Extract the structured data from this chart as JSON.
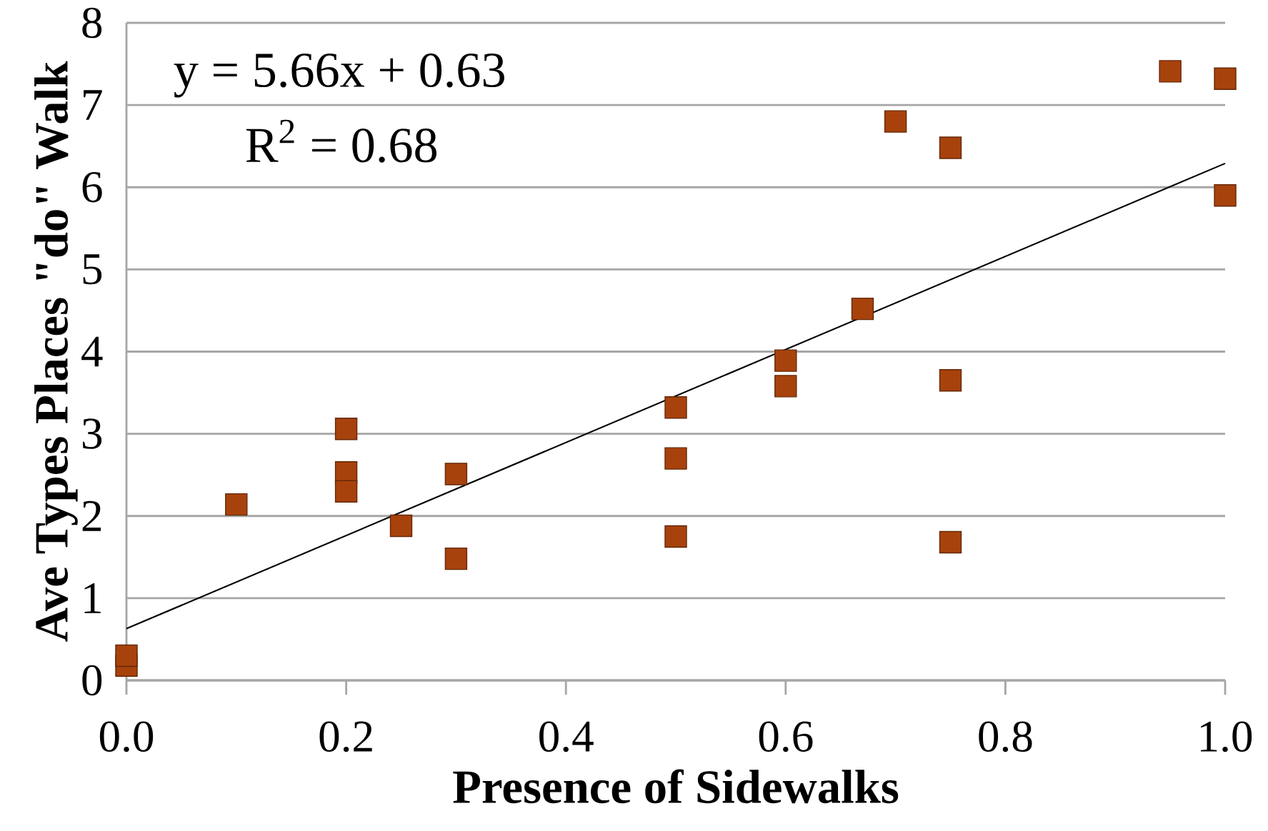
{
  "chart_data": {
    "type": "scatter",
    "xlabel": "Presence of Sidewalks",
    "ylabel": "Ave Types Places \"do\" Walk",
    "annotations": [
      "y = 5.66x + 0.63",
      "R$^{2}$ = 0.68"
    ],
    "xlim": [
      0,
      1
    ],
    "ylim": [
      0,
      8
    ],
    "xticks": [
      {
        "value": 0,
        "label": "0.0"
      },
      {
        "value": 0.2,
        "label": "0.2"
      },
      {
        "value": 0.4,
        "label": "0.4"
      },
      {
        "value": 0.6,
        "label": "0.6"
      },
      {
        "value": 0.8,
        "label": "0.8"
      },
      {
        "value": 1,
        "label": "1.0"
      }
    ],
    "yticks": [
      0,
      1,
      2,
      3,
      4,
      5,
      6,
      7,
      8
    ],
    "grid": "y",
    "series": [
      {
        "marker": "square",
        "color": "#a8420c",
        "x": [
          0,
          0,
          0.1,
          0.2,
          0.2,
          0.2,
          0.25,
          0.3,
          0.3,
          0.5,
          0.5,
          0.5,
          0.6,
          0.6,
          0.67,
          0.7,
          0.75,
          0.75,
          0.75,
          0.95,
          1,
          1
        ],
        "values": [
          0.18,
          0.3,
          2.14,
          3.06,
          2.53,
          2.3,
          1.88,
          2.51,
          1.48,
          3.32,
          2.7,
          1.75,
          3.89,
          3.58,
          4.52,
          6.8,
          6.48,
          3.65,
          1.68,
          7.41,
          7.32,
          5.9
        ]
      },
      {
        "type": "line",
        "marker": "none",
        "color": "#000000",
        "x": [
          0,
          1
        ],
        "values": [
          0.63,
          6.29
        ]
      }
    ]
  }
}
